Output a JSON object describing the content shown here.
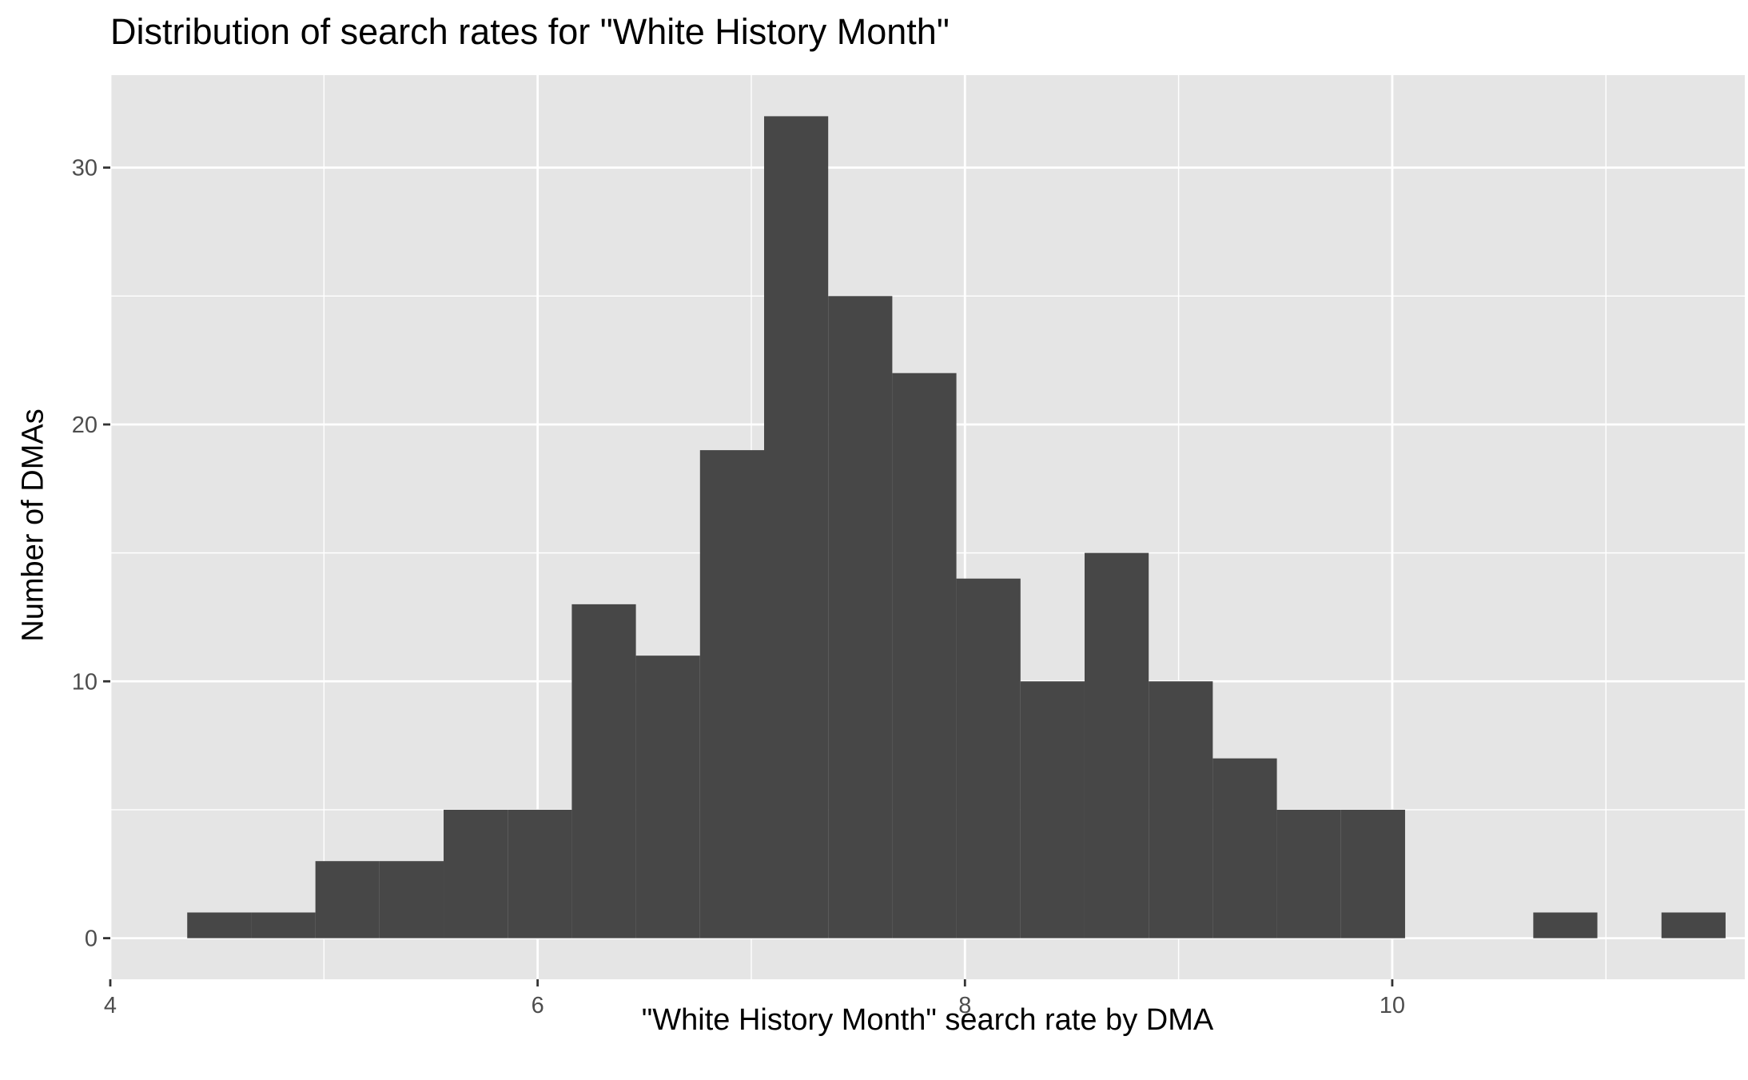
{
  "chart_data": {
    "type": "bar",
    "subtype": "histogram",
    "title": "Distribution of search rates for \"White History Month\"",
    "xlabel": "\"White History Month\" search rate by DMA",
    "ylabel": "Number of DMAs",
    "xlim": [
      4,
      11.65
    ],
    "ylim": [
      -1.6,
      33.6
    ],
    "x_ticks": [
      4,
      6,
      8,
      10
    ],
    "x_tick_labels": [
      "4",
      "6",
      "8",
      "10"
    ],
    "y_ticks": [
      0,
      10,
      20,
      30
    ],
    "y_tick_labels": [
      "0",
      "10",
      "20",
      "30"
    ],
    "bin_width": 0.3,
    "bins": [
      {
        "x_start": 4.36,
        "count": 1
      },
      {
        "x_start": 4.66,
        "count": 1
      },
      {
        "x_start": 4.96,
        "count": 3
      },
      {
        "x_start": 5.26,
        "count": 3
      },
      {
        "x_start": 5.56,
        "count": 5
      },
      {
        "x_start": 5.86,
        "count": 5
      },
      {
        "x_start": 6.16,
        "count": 13
      },
      {
        "x_start": 6.46,
        "count": 11
      },
      {
        "x_start": 6.76,
        "count": 19
      },
      {
        "x_start": 7.06,
        "count": 32
      },
      {
        "x_start": 7.36,
        "count": 25
      },
      {
        "x_start": 7.66,
        "count": 22
      },
      {
        "x_start": 7.96,
        "count": 14
      },
      {
        "x_start": 8.26,
        "count": 10
      },
      {
        "x_start": 8.56,
        "count": 15
      },
      {
        "x_start": 8.86,
        "count": 10
      },
      {
        "x_start": 9.16,
        "count": 7
      },
      {
        "x_start": 9.46,
        "count": 5
      },
      {
        "x_start": 9.76,
        "count": 5
      },
      {
        "x_start": 10.06,
        "count": 0
      },
      {
        "x_start": 10.36,
        "count": 0
      },
      {
        "x_start": 10.66,
        "count": 1
      },
      {
        "x_start": 10.96,
        "count": 0
      },
      {
        "x_start": 11.26,
        "count": 1
      }
    ],
    "grid": true,
    "colors": {
      "bar_fill": "#474747",
      "panel_background": "#e5e5e5",
      "grid_major": "#ffffff",
      "grid_minor": "#f2f2f2",
      "tick_text": "#4d4d4d",
      "tick_mark": "#333333"
    }
  }
}
